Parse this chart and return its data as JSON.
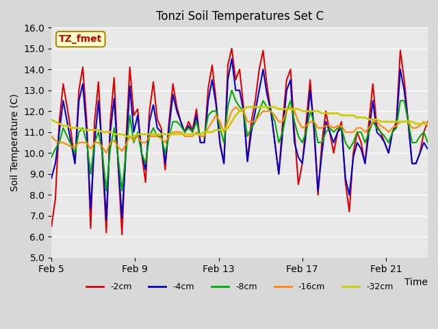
{
  "title": "Tonzi Soil Temperatures Set C",
  "xlabel": "Time",
  "ylabel": "Soil Temperature (C)",
  "ylim": [
    5.0,
    16.0
  ],
  "yticks": [
    5.0,
    6.0,
    7.0,
    8.0,
    9.0,
    10.0,
    11.0,
    12.0,
    13.0,
    14.0,
    15.0,
    16.0
  ],
  "xtick_labels": [
    "Feb 5",
    "Feb 9",
    "Feb 13",
    "Feb 17",
    "Feb 21"
  ],
  "annotation_label": "TZ_fmet",
  "background_color": "#e8e8e8",
  "plot_bg_color": "#e8e8e8",
  "series": {
    "-2cm": {
      "color": "#dd0000",
      "lw": 1.5
    },
    "-4cm": {
      "color": "#0000cc",
      "lw": 1.5
    },
    "-8cm": {
      "color": "#00aa00",
      "lw": 1.5
    },
    "-16cm": {
      "color": "#ff8800",
      "lw": 1.5
    },
    "-32cm": {
      "color": "#cccc00",
      "lw": 2.0
    }
  },
  "t_2cm": [
    6.5,
    7.8,
    11.5,
    13.3,
    12.2,
    11.0,
    9.5,
    13.0,
    14.1,
    11.5,
    6.4,
    11.5,
    13.4,
    9.8,
    6.2,
    11.5,
    13.6,
    9.5,
    6.1,
    10.5,
    14.1,
    11.8,
    12.1,
    10.0,
    8.6,
    12.0,
    13.4,
    11.6,
    11.2,
    9.2,
    11.5,
    13.3,
    12.2,
    11.5,
    11.0,
    11.5,
    11.1,
    12.1,
    10.5,
    10.5,
    13.1,
    14.2,
    12.5,
    10.4,
    9.5,
    14.2,
    15.0,
    13.5,
    14.0,
    12.2,
    9.6,
    11.5,
    12.5,
    14.0,
    14.9,
    13.2,
    12.0,
    10.5,
    9.0,
    11.5,
    13.5,
    14.0,
    11.0,
    8.5,
    9.5,
    11.5,
    13.5,
    11.0,
    8.0,
    10.5,
    12.0,
    11.0,
    10.0,
    11.0,
    11.5,
    8.6,
    7.2,
    10.0,
    11.0,
    10.5,
    9.5,
    11.5,
    13.3,
    11.3,
    11.0,
    10.5,
    10.0,
    11.0,
    11.5,
    14.9,
    13.5,
    11.5,
    9.5,
    9.5,
    10.0,
    11.0,
    11.5
  ],
  "t_4cm": [
    8.8,
    9.5,
    11.0,
    12.5,
    11.5,
    10.5,
    9.5,
    12.5,
    13.3,
    11.0,
    7.3,
    10.5,
    12.5,
    10.0,
    6.8,
    11.0,
    12.6,
    9.6,
    6.9,
    10.0,
    13.2,
    11.0,
    11.8,
    10.0,
    9.2,
    11.5,
    12.3,
    11.2,
    11.0,
    9.5,
    11.2,
    12.8,
    12.0,
    11.5,
    11.0,
    11.3,
    11.0,
    11.8,
    10.5,
    10.5,
    12.5,
    13.5,
    12.3,
    10.5,
    9.5,
    13.5,
    14.5,
    13.0,
    13.0,
    12.0,
    9.6,
    11.0,
    12.0,
    13.0,
    14.0,
    12.8,
    12.0,
    10.5,
    9.0,
    11.0,
    13.0,
    13.5,
    10.5,
    9.8,
    9.5,
    11.0,
    13.0,
    11.2,
    8.2,
    10.0,
    11.5,
    11.0,
    10.5,
    11.0,
    11.2,
    8.8,
    8.0,
    9.8,
    10.5,
    10.2,
    9.5,
    11.0,
    12.5,
    11.0,
    10.8,
    10.5,
    10.0,
    11.0,
    11.3,
    14.0,
    13.0,
    11.5,
    9.5,
    9.5,
    10.0,
    10.5,
    10.2
  ],
  "t_8cm": [
    9.8,
    10.2,
    10.5,
    11.2,
    10.8,
    10.4,
    10.0,
    11.0,
    11.2,
    10.5,
    9.0,
    10.5,
    11.0,
    10.0,
    8.2,
    10.2,
    11.2,
    9.8,
    8.2,
    10.0,
    11.8,
    10.5,
    11.0,
    10.0,
    9.5,
    10.8,
    11.2,
    10.8,
    10.8,
    10.0,
    10.8,
    11.5,
    11.5,
    11.3,
    11.0,
    11.2,
    11.0,
    11.5,
    10.8,
    10.8,
    11.8,
    12.0,
    12.0,
    11.2,
    10.5,
    12.2,
    13.0,
    12.5,
    12.2,
    12.0,
    10.8,
    11.2,
    11.5,
    12.0,
    12.5,
    12.2,
    12.0,
    11.5,
    10.5,
    11.0,
    12.0,
    12.5,
    11.5,
    10.8,
    10.5,
    11.0,
    12.0,
    11.5,
    10.5,
    10.5,
    11.0,
    11.2,
    11.0,
    11.2,
    11.2,
    10.5,
    10.2,
    10.5,
    11.0,
    11.0,
    10.5,
    11.0,
    11.5,
    11.2,
    11.0,
    10.8,
    10.5,
    11.0,
    11.2,
    12.5,
    12.5,
    11.5,
    10.5,
    10.5,
    10.8,
    11.0,
    10.5
  ],
  "t_16cm": [
    10.8,
    10.6,
    10.5,
    10.5,
    10.4,
    10.3,
    10.3,
    10.5,
    10.5,
    10.5,
    10.2,
    10.5,
    10.5,
    10.3,
    10.0,
    10.5,
    10.6,
    10.3,
    10.1,
    10.4,
    10.8,
    10.6,
    10.8,
    10.5,
    10.5,
    10.8,
    10.8,
    10.8,
    10.7,
    10.5,
    10.8,
    11.0,
    11.0,
    11.0,
    10.8,
    10.8,
    10.8,
    11.0,
    10.8,
    10.8,
    11.2,
    11.5,
    11.8,
    11.5,
    11.0,
    11.5,
    12.0,
    12.2,
    12.0,
    12.0,
    11.5,
    11.5,
    11.5,
    11.8,
    12.0,
    12.0,
    12.0,
    11.8,
    11.5,
    11.5,
    12.0,
    12.2,
    12.0,
    11.5,
    11.2,
    11.3,
    11.5,
    11.5,
    11.2,
    11.2,
    11.3,
    11.3,
    11.2,
    11.3,
    11.3,
    11.0,
    11.0,
    11.0,
    11.2,
    11.2,
    11.0,
    11.2,
    11.5,
    11.5,
    11.3,
    11.2,
    11.0,
    11.2,
    11.3,
    11.5,
    11.5,
    11.5,
    11.2,
    11.2,
    11.3,
    11.5,
    11.3
  ],
  "t_32cm": [
    11.6,
    11.5,
    11.4,
    11.3,
    11.3,
    11.2,
    11.2,
    11.2,
    11.1,
    11.1,
    11.1,
    11.1,
    11.1,
    11.0,
    11.0,
    11.0,
    10.9,
    10.9,
    10.9,
    10.8,
    10.8,
    10.8,
    10.9,
    10.9,
    10.9,
    10.9,
    10.9,
    10.9,
    10.9,
    10.9,
    10.9,
    10.9,
    10.9,
    10.9,
    10.9,
    10.9,
    10.9,
    10.9,
    10.9,
    11.0,
    11.0,
    11.0,
    11.1,
    11.1,
    11.1,
    11.2,
    11.5,
    11.8,
    12.0,
    12.1,
    12.2,
    12.2,
    12.2,
    12.2,
    12.2,
    12.2,
    12.2,
    12.2,
    12.1,
    12.1,
    12.1,
    12.1,
    12.1,
    12.1,
    12.0,
    12.0,
    12.0,
    12.0,
    12.0,
    11.9,
    11.9,
    11.9,
    11.9,
    11.9,
    11.8,
    11.8,
    11.8,
    11.8,
    11.7,
    11.7,
    11.7,
    11.6,
    11.6,
    11.6,
    11.5,
    11.5,
    11.5,
    11.5,
    11.5,
    11.5,
    11.5,
    11.5,
    11.5,
    11.4,
    11.4,
    11.4,
    11.4
  ]
}
